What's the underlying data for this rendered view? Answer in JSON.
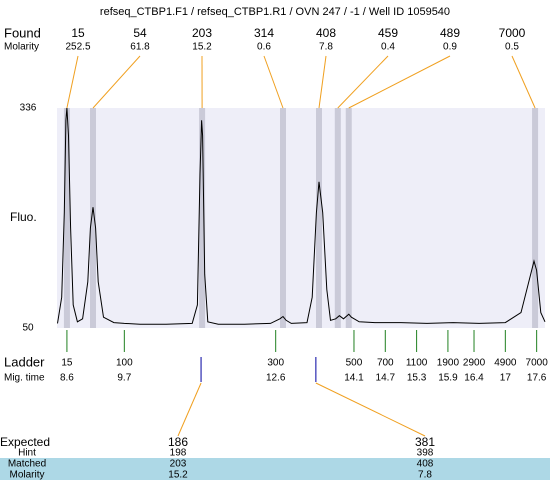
{
  "chart_data": {
    "type": "electropherogram",
    "title": "refseq_CTBP1.F1 / refseq_CTBP1.R1 / OVN 247 / -1 / Well ID 1059540",
    "y_label": "Fluo.",
    "xlim": [
      8.41,
      17.76
    ],
    "ylim": [
      50,
      336
    ],
    "yticks": [
      50,
      336
    ],
    "background": "#eeeef8",
    "trace": {
      "color": "#000000",
      "x": [
        8.42,
        8.5,
        8.55,
        8.58,
        8.6,
        8.63,
        8.67,
        8.72,
        8.8,
        8.9,
        9.0,
        9.05,
        9.1,
        9.15,
        9.2,
        9.3,
        9.5,
        9.7,
        10.0,
        10.5,
        11.0,
        11.1,
        11.15,
        11.18,
        11.2,
        11.24,
        11.3,
        11.5,
        12.0,
        12.5,
        12.68,
        12.74,
        12.8,
        12.9,
        13.2,
        13.3,
        13.38,
        13.43,
        13.5,
        13.58,
        13.65,
        13.75,
        13.82,
        13.9,
        14.0,
        14.05,
        14.2,
        14.5,
        15.0,
        15.5,
        16.0,
        16.5,
        17.0,
        17.3,
        17.45,
        17.55,
        17.6,
        17.68,
        17.76
      ],
      "y": [
        56,
        90,
        200,
        320,
        336,
        300,
        180,
        80,
        58,
        62,
        110,
        180,
        207,
        180,
        110,
        64,
        57,
        56,
        55,
        55,
        56,
        80,
        250,
        320,
        300,
        120,
        58,
        55,
        55,
        56,
        62,
        65,
        60,
        56,
        57,
        90,
        200,
        240,
        200,
        100,
        60,
        62,
        66,
        62,
        68,
        64,
        58,
        57,
        57,
        56,
        57,
        56,
        57,
        70,
        110,
        137,
        125,
        70,
        58
      ]
    },
    "found": {
      "label": "Found",
      "molarity_label": "Molarity",
      "sizes": [
        15,
        54,
        203,
        314,
        408,
        459,
        489,
        7000
      ],
      "molarity": [
        252.5,
        61.8,
        15.2,
        0.6,
        7.8,
        0.4,
        0.9,
        0.5
      ],
      "x": [
        8.6,
        9.1,
        11.19,
        12.74,
        13.43,
        13.79,
        14.0,
        17.57
      ],
      "band_color": "#cacad8",
      "connector_color": "#f0a020"
    },
    "ladder": {
      "label": "Ladder",
      "time_label": "Mig. time",
      "sizes": [
        15,
        100,
        300,
        500,
        700,
        1100,
        1900,
        2900,
        4900,
        7000
      ],
      "times": [
        8.6,
        9.7,
        12.6,
        14.1,
        14.7,
        15.3,
        15.9,
        16.4,
        17,
        17.6
      ],
      "color": "#208020"
    },
    "expected": {
      "label": "Expected",
      "hint_label": "Hint",
      "matched_label": "Matched",
      "molarity_label": "Molarity",
      "sizes": [
        186,
        381
      ],
      "hint": [
        198,
        398
      ],
      "matched": [
        203,
        408
      ],
      "molarity": [
        15.2,
        7.8
      ],
      "x": [
        11.17,
        13.37
      ],
      "color": "#0000a0",
      "row_color": "#add8e6"
    }
  }
}
